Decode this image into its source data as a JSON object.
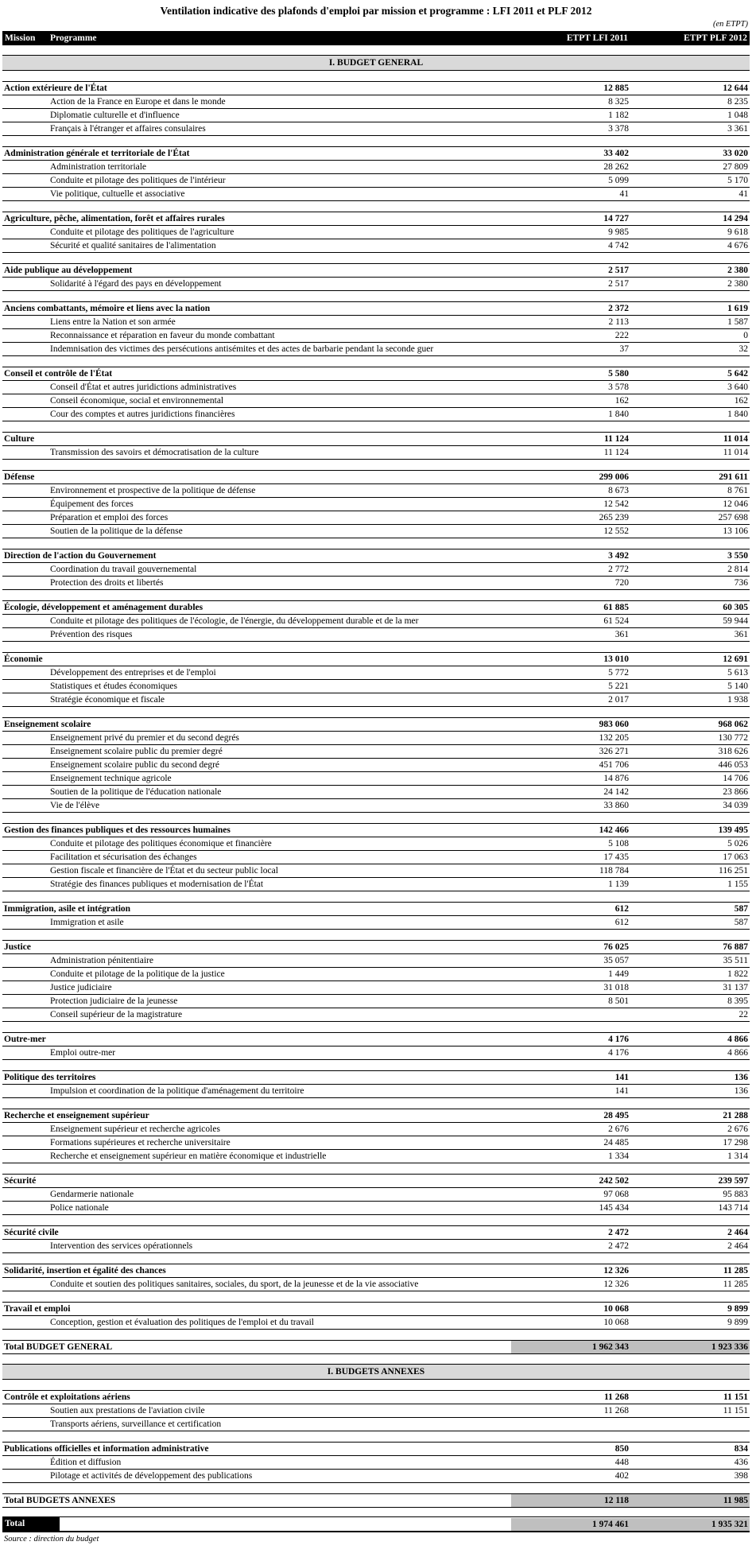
{
  "title": "Ventilation indicative des plafonds d'emploi par mission et programme : LFI 2011 et PLF 2012",
  "unit_note": "(en ETPT)",
  "source": "Source : direction du budget",
  "colors": {
    "header_bg": "#000000",
    "header_text": "#ffffff",
    "section_band_bg": "#d9d9d9",
    "total_shade_bg": "#bfbfbf"
  },
  "header": {
    "mission": "Mission",
    "programme": "Programme",
    "col_lfi": "ETPT LFI 2011",
    "col_plf": "ETPT PLF 2012"
  },
  "sections": [
    {
      "label": "I. BUDGET GENERAL",
      "missions": [
        {
          "name": "Action extérieure de l'État",
          "lfi": "12 885",
          "plf": "12 644",
          "programmes": [
            {
              "name": "Action de la France en Europe et dans le monde",
              "lfi": "8 325",
              "plf": "8 235"
            },
            {
              "name": "Diplomatie culturelle et d'influence",
              "lfi": "1 182",
              "plf": "1 048"
            },
            {
              "name": "Français à l'étranger et affaires consulaires",
              "lfi": "3 378",
              "plf": "3 361"
            }
          ]
        },
        {
          "name": "Administration générale et territoriale de l'État",
          "lfi": "33 402",
          "plf": "33 020",
          "programmes": [
            {
              "name": "Administration territoriale",
              "lfi": "28 262",
              "plf": "27 809"
            },
            {
              "name": "Conduite et pilotage des politiques de l'intérieur",
              "lfi": "5 099",
              "plf": "5 170"
            },
            {
              "name": "Vie politique, cultuelle et associative",
              "lfi": "41",
              "plf": "41"
            }
          ]
        },
        {
          "name": "Agriculture, pêche, alimentation, forêt et affaires rurales",
          "lfi": "14 727",
          "plf": "14 294",
          "programmes": [
            {
              "name": "Conduite et pilotage des politiques de l'agriculture",
              "lfi": "9 985",
              "plf": "9 618"
            },
            {
              "name": "Sécurité et qualité sanitaires de l'alimentation",
              "lfi": "4 742",
              "plf": "4 676"
            }
          ]
        },
        {
          "name": "Aide publique au développement",
          "lfi": "2 517",
          "plf": "2 380",
          "programmes": [
            {
              "name": "Solidarité à l'égard des pays en développement",
              "lfi": "2 517",
              "plf": "2 380"
            }
          ]
        },
        {
          "name": "Anciens combattants, mémoire et liens avec la nation",
          "lfi": "2 372",
          "plf": "1 619",
          "programmes": [
            {
              "name": "Liens entre la Nation et son armée",
              "lfi": "2 113",
              "plf": "1 587"
            },
            {
              "name": "Reconnaissance et réparation en faveur du monde combattant",
              "lfi": "222",
              "plf": "0"
            },
            {
              "name": "Indemnisation des victimes des persécutions antisémites et des actes de barbarie pendant la seconde guer",
              "lfi": "37",
              "plf": "32"
            }
          ]
        },
        {
          "name": "Conseil et contrôle de l'État",
          "lfi": "5 580",
          "plf": "5 642",
          "programmes": [
            {
              "name": "Conseil d'État et autres juridictions administratives",
              "lfi": "3 578",
              "plf": "3 640"
            },
            {
              "name": "Conseil économique, social et environnemental",
              "lfi": "162",
              "plf": "162"
            },
            {
              "name": "Cour des comptes et autres juridictions financières",
              "lfi": "1 840",
              "plf": "1 840"
            }
          ]
        },
        {
          "name": "Culture",
          "lfi": "11 124",
          "plf": "11 014",
          "programmes": [
            {
              "name": "Transmission des savoirs et démocratisation de la culture",
              "lfi": "11 124",
              "plf": "11 014"
            }
          ]
        },
        {
          "name": "Défense",
          "lfi": "299 006",
          "plf": "291 611",
          "programmes": [
            {
              "name": "Environnement et prospective de la politique de défense",
              "lfi": "8 673",
              "plf": "8 761"
            },
            {
              "name": "Équipement des forces",
              "lfi": "12 542",
              "plf": "12 046"
            },
            {
              "name": "Préparation et emploi des forces",
              "lfi": "265 239",
              "plf": "257 698"
            },
            {
              "name": "Soutien de la politique de la défense",
              "lfi": "12 552",
              "plf": "13 106"
            }
          ]
        },
        {
          "name": "Direction de l'action du Gouvernement",
          "lfi": "3 492",
          "plf": "3 550",
          "programmes": [
            {
              "name": "Coordination du travail gouvernemental",
              "lfi": "2 772",
              "plf": "2 814"
            },
            {
              "name": "Protection des droits et libertés",
              "lfi": "720",
              "plf": "736"
            }
          ]
        },
        {
          "name": "Écologie, développement et aménagement durables",
          "lfi": "61 885",
          "plf": "60 305",
          "programmes": [
            {
              "name": "Conduite et pilotage des politiques de l'écologie, de l'énergie, du développement durable et de la mer",
              "lfi": "61 524",
              "plf": "59 944"
            },
            {
              "name": "Prévention des risques",
              "lfi": "361",
              "plf": "361"
            }
          ]
        },
        {
          "name": "Économie",
          "lfi": "13 010",
          "plf": "12 691",
          "programmes": [
            {
              "name": "Développement des entreprises et de l'emploi",
              "lfi": "5 772",
              "plf": "5 613"
            },
            {
              "name": "Statistiques et études économiques",
              "lfi": "5 221",
              "plf": "5 140"
            },
            {
              "name": "Stratégie économique et fiscale",
              "lfi": "2 017",
              "plf": "1 938"
            }
          ]
        },
        {
          "name": "Enseignement scolaire",
          "lfi": "983 060",
          "plf": "968 062",
          "programmes": [
            {
              "name": "Enseignement privé du premier et du second degrés",
              "lfi": "132 205",
              "plf": "130 772"
            },
            {
              "name": "Enseignement scolaire public du premier degré",
              "lfi": "326 271",
              "plf": "318 626"
            },
            {
              "name": "Enseignement scolaire public du second degré",
              "lfi": "451 706",
              "plf": "446 053"
            },
            {
              "name": "Enseignement technique agricole",
              "lfi": "14 876",
              "plf": "14 706"
            },
            {
              "name": "Soutien de la politique de l'éducation nationale",
              "lfi": "24 142",
              "plf": "23 866"
            },
            {
              "name": "Vie de l'élève",
              "lfi": "33 860",
              "plf": "34 039"
            }
          ]
        },
        {
          "name": "Gestion des finances publiques et des ressources humaines",
          "lfi": "142 466",
          "plf": "139 495",
          "programmes": [
            {
              "name": "Conduite et pilotage des politiques économique et financière",
              "lfi": "5 108",
              "plf": "5 026"
            },
            {
              "name": "Facilitation et sécurisation des échanges",
              "lfi": "17 435",
              "plf": "17 063"
            },
            {
              "name": "Gestion fiscale et financière de l'État et du secteur public local",
              "lfi": "118 784",
              "plf": "116 251"
            },
            {
              "name": "Stratégie des finances publiques et modernisation de l'État",
              "lfi": "1 139",
              "plf": "1 155"
            }
          ]
        },
        {
          "name": "Immigration, asile et intégration",
          "lfi": "612",
          "plf": "587",
          "programmes": [
            {
              "name": "Immigration et asile",
              "lfi": "612",
              "plf": "587"
            }
          ]
        },
        {
          "name": "Justice",
          "lfi": "76 025",
          "plf": "76 887",
          "programmes": [
            {
              "name": "Administration pénitentiaire",
              "lfi": "35 057",
              "plf": "35 511"
            },
            {
              "name": "Conduite et pilotage de la politique de la justice",
              "lfi": "1 449",
              "plf": "1 822"
            },
            {
              "name": "Justice judiciaire",
              "lfi": "31 018",
              "plf": "31 137"
            },
            {
              "name": "Protection judiciaire de la jeunesse",
              "lfi": "8 501",
              "plf": "8 395"
            },
            {
              "name": "Conseil supérieur de la magistrature",
              "lfi": "",
              "plf": "22"
            }
          ]
        },
        {
          "name": "Outre-mer",
          "lfi": "4 176",
          "plf": "4 866",
          "programmes": [
            {
              "name": "Emploi outre-mer",
              "lfi": "4 176",
              "plf": "4 866"
            }
          ]
        },
        {
          "name": "Politique des territoires",
          "lfi": "141",
          "plf": "136",
          "programmes": [
            {
              "name": "Impulsion et coordination de la politique d'aménagement du territoire",
              "lfi": "141",
              "plf": "136"
            }
          ]
        },
        {
          "name": "Recherche et enseignement supérieur",
          "lfi": "28 495",
          "plf": "21 288",
          "programmes": [
            {
              "name": "Enseignement supérieur et recherche agricoles",
              "lfi": "2 676",
              "plf": "2 676"
            },
            {
              "name": "Formations supérieures et recherche universitaire",
              "lfi": "24 485",
              "plf": "17 298"
            },
            {
              "name": "Recherche et enseignement supérieur en matière économique et industrielle",
              "lfi": "1 334",
              "plf": "1 314"
            }
          ]
        },
        {
          "name": "Sécurité",
          "lfi": "242 502",
          "plf": "239 597",
          "programmes": [
            {
              "name": "Gendarmerie nationale",
              "lfi": "97 068",
              "plf": "95 883"
            },
            {
              "name": "Police nationale",
              "lfi": "145 434",
              "plf": "143 714"
            }
          ]
        },
        {
          "name": "Sécurité civile",
          "lfi": "2 472",
          "plf": "2 464",
          "programmes": [
            {
              "name": "Intervention des services opérationnels",
              "lfi": "2 472",
              "plf": "2 464"
            }
          ]
        },
        {
          "name": "Solidarité, insertion et égalité des chances",
          "lfi": "12 326",
          "plf": "11 285",
          "programmes": [
            {
              "name": "Conduite et soutien des politiques sanitaires, sociales, du sport, de la jeunesse et de la vie associative",
              "lfi": "12 326",
              "plf": "11 285"
            }
          ]
        },
        {
          "name": "Travail et emploi",
          "lfi": "10 068",
          "plf": "9 899",
          "programmes": [
            {
              "name": "Conception, gestion et évaluation des politiques de l'emploi et du travail",
              "lfi": "10 068",
              "plf": "9 899"
            }
          ]
        }
      ],
      "total": {
        "label": "Total BUDGET GENERAL",
        "lfi": "1 962 343",
        "plf": "1 923 336"
      }
    },
    {
      "label": "I. BUDGETS ANNEXES",
      "missions": [
        {
          "name": "Contrôle et exploitations aériens",
          "lfi": "11 268",
          "plf": "11 151",
          "programmes": [
            {
              "name": "Soutien aux prestations de l'aviation civile",
              "lfi": "11 268",
              "plf": "11 151"
            },
            {
              "name": "Transports aériens, surveillance et certification",
              "lfi": "",
              "plf": ""
            }
          ]
        },
        {
          "name": "Publications officielles et information administrative",
          "lfi": "850",
          "plf": "834",
          "programmes": [
            {
              "name": "Édition et diffusion",
              "lfi": "448",
              "plf": "436"
            },
            {
              "name": "Pilotage et activités de développement des publications",
              "lfi": "402",
              "plf": "398"
            }
          ]
        }
      ],
      "total": {
        "label": "Total BUDGETS ANNEXES",
        "lfi": "12 118",
        "plf": "11 985"
      }
    }
  ],
  "grand_total": {
    "label": "Total",
    "lfi": "1 974 461",
    "plf": "1 935 321"
  }
}
